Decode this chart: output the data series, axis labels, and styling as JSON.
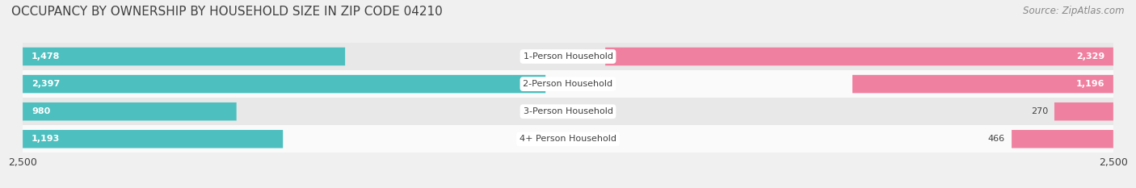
{
  "title": "OCCUPANCY BY OWNERSHIP BY HOUSEHOLD SIZE IN ZIP CODE 04210",
  "source": "Source: ZipAtlas.com",
  "categories": [
    "1-Person Household",
    "2-Person Household",
    "3-Person Household",
    "4+ Person Household"
  ],
  "owner_values": [
    1478,
    2397,
    980,
    1193
  ],
  "renter_values": [
    2329,
    1196,
    270,
    466
  ],
  "owner_color": "#4dbfbf",
  "renter_color": "#f080a0",
  "axis_max": 2500,
  "bar_height": 0.62,
  "bg_color": "#f0f0f0",
  "row_colors": [
    "#e8e8e8",
    "#fafafa",
    "#e8e8e8",
    "#fafafa"
  ],
  "title_fontsize": 11,
  "source_fontsize": 8.5,
  "tick_fontsize": 9,
  "value_fontsize": 8,
  "category_fontsize": 8,
  "legend_fontsize": 8.5,
  "text_color": "#404040",
  "source_color": "#888888"
}
